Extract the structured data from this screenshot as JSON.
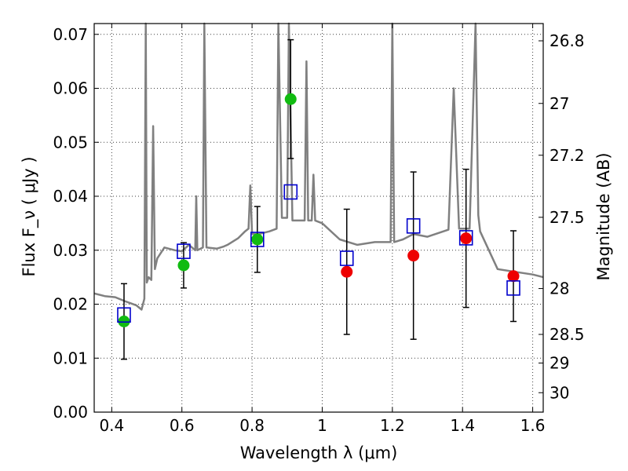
{
  "chart_data": {
    "type": "scatter",
    "title": "",
    "xlabel": "Wavelength  λ (μm)",
    "ylabel": "Flux  F_ν  ( μJy )",
    "ylabel_right": "Magnitude (AB)",
    "xlim": [
      0.35,
      1.63
    ],
    "ylim": [
      0.0,
      0.072
    ],
    "grid": true,
    "x_ticks": [
      "0.4",
      "0.6",
      "0.8",
      "1",
      "1.2",
      "1.4",
      "1.6"
    ],
    "x_tick_values": [
      0.4,
      0.6,
      0.8,
      1.0,
      1.2,
      1.4,
      1.6
    ],
    "y_ticks": [
      "0.00",
      "0.01",
      "0.02",
      "0.03",
      "0.04",
      "0.05",
      "0.06",
      "0.07"
    ],
    "y_tick_values": [
      0.0,
      0.01,
      0.02,
      0.03,
      0.04,
      0.05,
      0.06,
      0.07
    ],
    "right_ticks": [
      {
        "label": "26.8",
        "flux": 0.0688
      },
      {
        "label": "27",
        "flux": 0.0572
      },
      {
        "label": "27.2",
        "flux": 0.0476
      },
      {
        "label": "27.5",
        "flux": 0.0361
      },
      {
        "label": "28",
        "flux": 0.0229
      },
      {
        "label": "28.5",
        "flux": 0.0144
      },
      {
        "label": "29",
        "flux": 0.0091
      },
      {
        "label": "30",
        "flux": 0.0036
      }
    ],
    "colors": {
      "model": "#808080",
      "green": "#11bb11",
      "red": "#ee0000",
      "square": "#0000cc",
      "errorbar": "#000000"
    },
    "series": [
      {
        "marker": "circle-green",
        "x": [
          0.435,
          0.605,
          0.815,
          0.91
        ],
        "y": [
          0.0168,
          0.0272,
          0.032,
          0.058
        ],
        "err": [
          0.007,
          0.0042,
          0.0061,
          0.011
        ]
      },
      {
        "marker": "circle-red",
        "x": [
          1.07,
          1.26,
          1.41,
          1.545
        ],
        "y": [
          0.026,
          0.029,
          0.0322,
          0.0252
        ],
        "err": [
          0.0116,
          0.0155,
          0.0128,
          0.0084
        ]
      },
      {
        "marker": "square-blue",
        "x": [
          0.435,
          0.605,
          0.815,
          0.91,
          1.07,
          1.26,
          1.41,
          1.545
        ],
        "y": [
          0.018,
          0.0298,
          0.032,
          0.0408,
          0.0285,
          0.0345,
          0.0323,
          0.023
        ]
      }
    ],
    "model_spectrum": [
      [
        0.35,
        0.022
      ],
      [
        0.38,
        0.0215
      ],
      [
        0.41,
        0.0213
      ],
      [
        0.44,
        0.0205
      ],
      [
        0.47,
        0.0198
      ],
      [
        0.485,
        0.019
      ],
      [
        0.493,
        0.021
      ],
      [
        0.497,
        0.073
      ],
      [
        0.5,
        0.024
      ],
      [
        0.505,
        0.025
      ],
      [
        0.513,
        0.0245
      ],
      [
        0.518,
        0.053
      ],
      [
        0.523,
        0.0265
      ],
      [
        0.53,
        0.0285
      ],
      [
        0.55,
        0.0305
      ],
      [
        0.58,
        0.03
      ],
      [
        0.6,
        0.0298
      ],
      [
        0.62,
        0.031
      ],
      [
        0.638,
        0.03
      ],
      [
        0.641,
        0.04
      ],
      [
        0.644,
        0.03
      ],
      [
        0.66,
        0.0305
      ],
      [
        0.664,
        0.073
      ],
      [
        0.67,
        0.0305
      ],
      [
        0.7,
        0.0303
      ],
      [
        0.72,
        0.0307
      ],
      [
        0.73,
        0.031
      ],
      [
        0.76,
        0.0322
      ],
      [
        0.78,
        0.0335
      ],
      [
        0.79,
        0.034
      ],
      [
        0.795,
        0.042
      ],
      [
        0.8,
        0.033
      ],
      [
        0.82,
        0.033
      ],
      [
        0.85,
        0.0335
      ],
      [
        0.87,
        0.034
      ],
      [
        0.875,
        0.073
      ],
      [
        0.885,
        0.036
      ],
      [
        0.9,
        0.036
      ],
      [
        0.905,
        0.073
      ],
      [
        0.915,
        0.0355
      ],
      [
        0.93,
        0.0355
      ],
      [
        0.95,
        0.0355
      ],
      [
        0.955,
        0.065
      ],
      [
        0.96,
        0.0355
      ],
      [
        0.97,
        0.0355
      ],
      [
        0.975,
        0.044
      ],
      [
        0.98,
        0.0355
      ],
      [
        1.0,
        0.035
      ],
      [
        1.05,
        0.032
      ],
      [
        1.1,
        0.031
      ],
      [
        1.15,
        0.0315
      ],
      [
        1.195,
        0.0315
      ],
      [
        1.2,
        0.073
      ],
      [
        1.205,
        0.0315
      ],
      [
        1.23,
        0.032
      ],
      [
        1.26,
        0.033
      ],
      [
        1.3,
        0.0325
      ],
      [
        1.36,
        0.0338
      ],
      [
        1.375,
        0.06
      ],
      [
        1.39,
        0.034
      ],
      [
        1.42,
        0.034
      ],
      [
        1.437,
        0.073
      ],
      [
        1.445,
        0.0365
      ],
      [
        1.45,
        0.0335
      ],
      [
        1.5,
        0.0265
      ],
      [
        1.55,
        0.026
      ],
      [
        1.6,
        0.0255
      ],
      [
        1.63,
        0.025
      ]
    ]
  }
}
